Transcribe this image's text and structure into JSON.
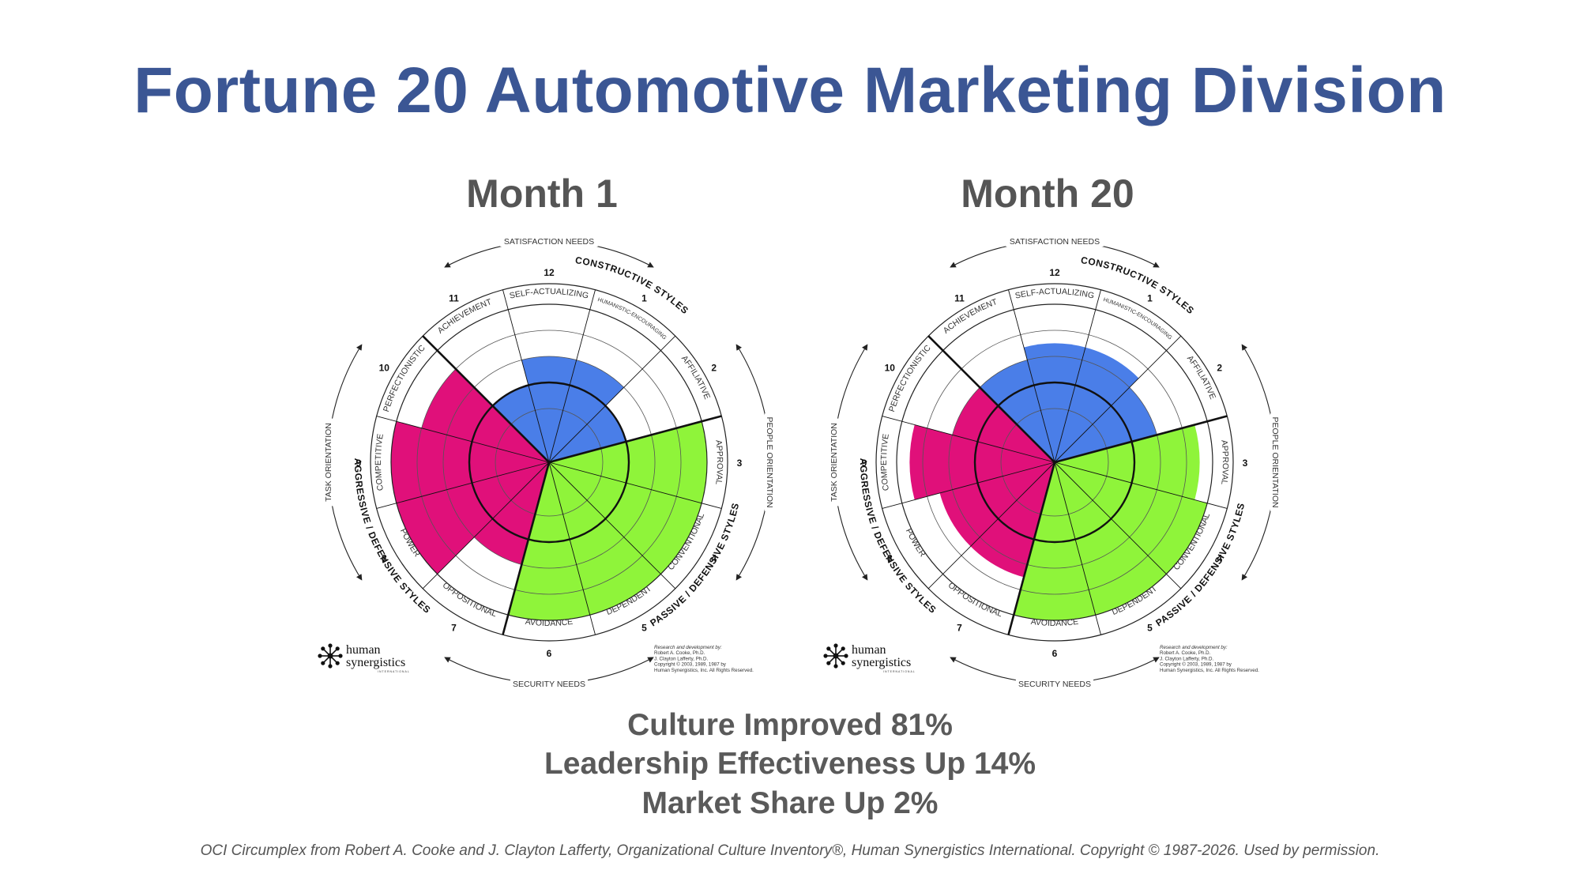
{
  "title": "Fortune 20 Automotive Marketing Division",
  "chart_data": [
    {
      "type": "circumplex",
      "title": "Month 1",
      "styles": [
        "SELF-ACTUALIZING",
        "HUMANISTIC-ENCOURAGING",
        "AFFILIATIVE",
        "APPROVAL",
        "CONVENTIONAL",
        "DEPENDENT",
        "AVOIDANCE",
        "OPPOSITIONAL",
        "POWER",
        "COMPETITIVE",
        "PERFECTIONISTIC",
        "ACHIEVEMENT"
      ],
      "numbers": [
        "12",
        "1",
        "2",
        "3",
        "4",
        "5",
        "6",
        "7",
        "8",
        "9",
        "10",
        "11"
      ],
      "values": [
        3,
        3,
        2,
        5,
        5,
        5,
        5,
        3,
        5,
        5,
        4,
        2
      ],
      "colors": [
        "#4a7ee8",
        "#4a7ee8",
        "#4a7ee8",
        "#8ff43a",
        "#8ff43a",
        "#8ff43a",
        "#8ff43a",
        "#e0107a",
        "#e0107a",
        "#e0107a",
        "#e0107a",
        "#4a7ee8"
      ]
    },
    {
      "type": "circumplex",
      "title": "Month 20",
      "styles": [
        "SELF-ACTUALIZING",
        "HUMANISTIC-ENCOURAGING",
        "AFFILIATIVE",
        "APPROVAL",
        "CONVENTIONAL",
        "DEPENDENT",
        "AVOIDANCE",
        "OPPOSITIONAL",
        "POWER",
        "COMPETITIVE",
        "PERFECTIONISTIC",
        "ACHIEVEMENT"
      ],
      "numbers": [
        "12",
        "1",
        "2",
        "3",
        "4",
        "5",
        "6",
        "7",
        "8",
        "9",
        "10",
        "11"
      ],
      "values": [
        3.5,
        3.5,
        3,
        4.5,
        5,
        5,
        5,
        3.5,
        3.5,
        4.5,
        3,
        3
      ],
      "colors": [
        "#4a7ee8",
        "#4a7ee8",
        "#4a7ee8",
        "#8ff43a",
        "#8ff43a",
        "#8ff43a",
        "#8ff43a",
        "#e0107a",
        "#e0107a",
        "#e0107a",
        "#e0107a",
        "#4a7ee8"
      ]
    }
  ],
  "circumplex_labels": {
    "satisfaction": "SATISFACTION NEEDS",
    "security": "SECURITY NEEDS",
    "task": "TASK ORIENTATION",
    "people": "PEOPLE ORIENTATION",
    "constructive": "CONSTRUCTIVE STYLES",
    "passive": "PASSIVE / DEFENSIVE STYLES",
    "aggressive": "AGGRESSIVE / DEFENSIVE STYLES",
    "logo_top": "human",
    "logo_bottom": "synergistics",
    "logo_sub": "INTERNATIONAL",
    "credit": [
      "Research and development by:",
      "Robert A. Cooke, Ph.D.",
      "J. Clayton Lafferty, Ph.D.",
      "Copyright © 2003, 1989, 1987 by",
      "Human Synergistics, Inc. All Rights Reserved."
    ]
  },
  "results": [
    "Culture Improved 81%",
    "Leadership Effectiveness Up 14%",
    "Market Share Up 2%"
  ],
  "footer": "OCI Circumplex from Robert A. Cooke and J. Clayton Lafferty, Organizational Culture Inventory®, Human Synergistics International. Copyright © 1987-2026. Used by permission."
}
